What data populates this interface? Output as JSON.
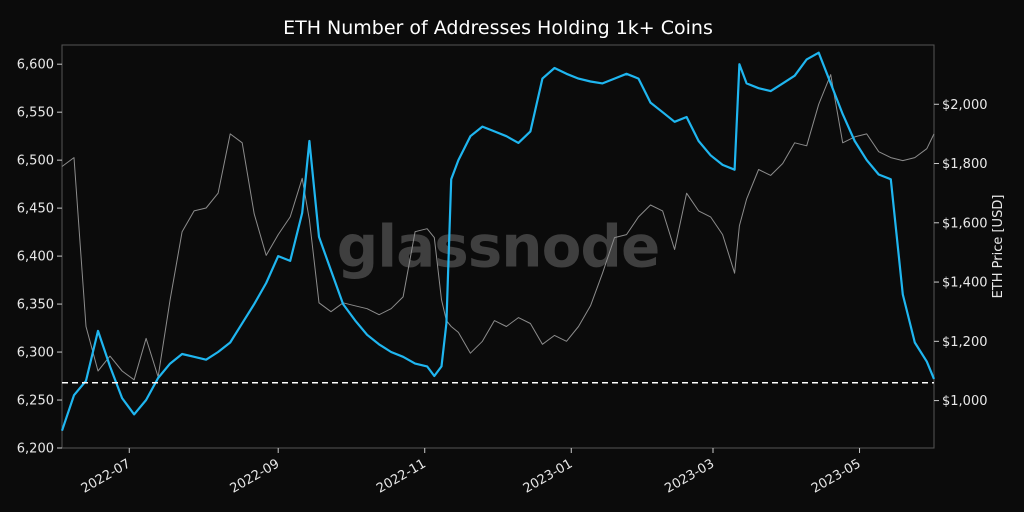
{
  "chart_data": {
    "type": "line",
    "title": "ETH Number of Addresses Holding 1k+ Coins",
    "watermark": "glassnode",
    "ylabel_right": "ETH Price [USD]",
    "ylim_left": [
      6200,
      6620
    ],
    "ylim_right": [
      840,
      2200
    ],
    "xlim": [
      "2022-06-03",
      "2023-06-01"
    ],
    "x_tick_labels": [
      "2022-07",
      "2022-09",
      "2022-11",
      "2023-01",
      "2023-03",
      "2023-05"
    ],
    "x_ticks": [
      "2022-07-01",
      "2022-09-01",
      "2022-11-01",
      "2023-01-01",
      "2023-03-01",
      "2023-05-01"
    ],
    "y_left_ticks": [
      6200,
      6250,
      6300,
      6350,
      6400,
      6450,
      6500,
      6550,
      6600
    ],
    "y_left_tick_labels": [
      "6,200",
      "6,250",
      "6,300",
      "6,350",
      "6,400",
      "6,450",
      "6,500",
      "6,550",
      "6,600"
    ],
    "y_right_ticks": [
      1000,
      1200,
      1400,
      1600,
      1800,
      2000
    ],
    "y_right_tick_labels": [
      "$1,000",
      "$1,200",
      "$1,400",
      "$1,600",
      "$1,800",
      "$2,000"
    ],
    "reference_line": {
      "value": 6268,
      "style": "dashed",
      "color": "#ffffff"
    },
    "colors": {
      "background": "#0b0b0b",
      "addresses": "#1fb6f0",
      "price": "#8c8c8c",
      "frame": "#555555"
    },
    "series": [
      {
        "axis": "left",
        "x": [
          "2022-06-03",
          "2022-06-08",
          "2022-06-13",
          "2022-06-18",
          "2022-06-23",
          "2022-06-28",
          "2022-07-03",
          "2022-07-08",
          "2022-07-13",
          "2022-07-18",
          "2022-07-23",
          "2022-07-28",
          "2022-08-02",
          "2022-08-07",
          "2022-08-12",
          "2022-08-17",
          "2022-08-22",
          "2022-08-27",
          "2022-09-01",
          "2022-09-06",
          "2022-09-11",
          "2022-09-14",
          "2022-09-18",
          "2022-09-23",
          "2022-09-28",
          "2022-10-03",
          "2022-10-08",
          "2022-10-13",
          "2022-10-18",
          "2022-10-23",
          "2022-10-28",
          "2022-11-02",
          "2022-11-05",
          "2022-11-08",
          "2022-11-10",
          "2022-11-12",
          "2022-11-15",
          "2022-11-20",
          "2022-11-25",
          "2022-11-30",
          "2022-12-05",
          "2022-12-10",
          "2022-12-15",
          "2022-12-20",
          "2022-12-25",
          "2022-12-30",
          "2023-01-04",
          "2023-01-09",
          "2023-01-14",
          "2023-01-19",
          "2023-01-24",
          "2023-01-29",
          "2023-02-03",
          "2023-02-08",
          "2023-02-13",
          "2023-02-18",
          "2023-02-23",
          "2023-02-28",
          "2023-03-05",
          "2023-03-10",
          "2023-03-12",
          "2023-03-15",
          "2023-03-20",
          "2023-03-25",
          "2023-03-30",
          "2023-04-04",
          "2023-04-09",
          "2023-04-14",
          "2023-04-19",
          "2023-04-24",
          "2023-04-29",
          "2023-05-04",
          "2023-05-09",
          "2023-05-14",
          "2023-05-19",
          "2023-05-24",
          "2023-05-29",
          "2023-06-01"
        ],
        "values": [
          6218,
          6255,
          6270,
          6322,
          6285,
          6252,
          6235,
          6250,
          6273,
          6288,
          6298,
          6295,
          6292,
          6300,
          6310,
          6330,
          6350,
          6372,
          6400,
          6395,
          6445,
          6520,
          6420,
          6385,
          6350,
          6333,
          6318,
          6308,
          6300,
          6295,
          6288,
          6285,
          6275,
          6285,
          6330,
          6480,
          6500,
          6525,
          6535,
          6530,
          6525,
          6518,
          6530,
          6585,
          6596,
          6590,
          6585,
          6582,
          6580,
          6585,
          6590,
          6585,
          6560,
          6550,
          6540,
          6545,
          6520,
          6505,
          6495,
          6490,
          6600,
          6580,
          6575,
          6572,
          6580,
          6588,
          6605,
          6612,
          6580,
          6548,
          6520,
          6500,
          6485,
          6480,
          6360,
          6310,
          6290,
          6272
        ]
      },
      {
        "axis": "right",
        "x": [
          "2022-06-03",
          "2022-06-08",
          "2022-06-13",
          "2022-06-18",
          "2022-06-23",
          "2022-06-28",
          "2022-07-03",
          "2022-07-08",
          "2022-07-13",
          "2022-07-18",
          "2022-07-23",
          "2022-07-28",
          "2022-08-02",
          "2022-08-07",
          "2022-08-12",
          "2022-08-17",
          "2022-08-22",
          "2022-08-27",
          "2022-09-01",
          "2022-09-06",
          "2022-09-11",
          "2022-09-14",
          "2022-09-18",
          "2022-09-23",
          "2022-09-28",
          "2022-10-03",
          "2022-10-08",
          "2022-10-13",
          "2022-10-18",
          "2022-10-23",
          "2022-10-28",
          "2022-11-02",
          "2022-11-05",
          "2022-11-08",
          "2022-11-10",
          "2022-11-12",
          "2022-11-15",
          "2022-11-20",
          "2022-11-25",
          "2022-11-30",
          "2022-12-05",
          "2022-12-10",
          "2022-12-15",
          "2022-12-20",
          "2022-12-25",
          "2022-12-30",
          "2023-01-04",
          "2023-01-09",
          "2023-01-14",
          "2023-01-19",
          "2023-01-24",
          "2023-01-29",
          "2023-02-03",
          "2023-02-08",
          "2023-02-13",
          "2023-02-18",
          "2023-02-23",
          "2023-02-28",
          "2023-03-05",
          "2023-03-10",
          "2023-03-12",
          "2023-03-15",
          "2023-03-20",
          "2023-03-25",
          "2023-03-30",
          "2023-04-04",
          "2023-04-09",
          "2023-04-14",
          "2023-04-19",
          "2023-04-24",
          "2023-04-29",
          "2023-05-04",
          "2023-05-09",
          "2023-05-14",
          "2023-05-19",
          "2023-05-24",
          "2023-05-29",
          "2023-06-01"
        ],
        "values": [
          1790,
          1820,
          1250,
          1100,
          1150,
          1100,
          1070,
          1210,
          1080,
          1340,
          1570,
          1640,
          1650,
          1700,
          1900,
          1870,
          1630,
          1490,
          1560,
          1620,
          1750,
          1610,
          1330,
          1300,
          1330,
          1320,
          1310,
          1290,
          1310,
          1350,
          1570,
          1580,
          1550,
          1340,
          1270,
          1250,
          1230,
          1160,
          1200,
          1270,
          1250,
          1280,
          1260,
          1190,
          1220,
          1200,
          1250,
          1320,
          1430,
          1550,
          1560,
          1620,
          1660,
          1640,
          1510,
          1700,
          1640,
          1620,
          1560,
          1430,
          1590,
          1680,
          1780,
          1760,
          1800,
          1870,
          1860,
          2000,
          2100,
          1870,
          1890,
          1900,
          1840,
          1820,
          1810,
          1820,
          1850,
          1900
        ]
      }
    ]
  }
}
